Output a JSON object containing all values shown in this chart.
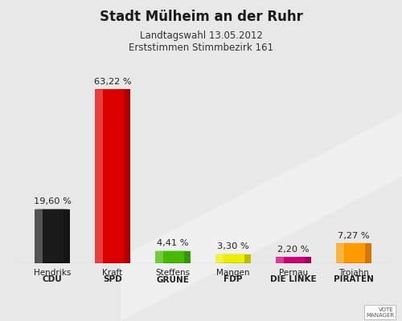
{
  "title": "Stadt Mülheim an der Ruhr",
  "subtitle1": "Landtagswahl 13.05.2012",
  "subtitle2": "Erststimmen Stimmbezirk 161",
  "categories": [
    "Hendriks\nCDU",
    "Kraft\nSPD",
    "Steffens\nGRÜNE",
    "Mangen\nFDP",
    "Pernau\nDIE LINKE",
    "Trojahn\nPIRATEN"
  ],
  "values": [
    19.6,
    63.22,
    4.41,
    3.3,
    2.2,
    7.27
  ],
  "labels": [
    "19,60 %",
    "63,22 %",
    "4,41 %",
    "3,30 %",
    "2,20 %",
    "7,27 %"
  ],
  "bar_colors": [
    "#1a1a1a",
    "#dd0000",
    "#44bb00",
    "#eeee00",
    "#cc0077",
    "#ff9900"
  ],
  "bar_colors_dark": [
    "#000000",
    "#aa0000",
    "#228800",
    "#aaaa00",
    "#880044",
    "#cc6600"
  ],
  "bar_colors_light": [
    "#555555",
    "#ff4444",
    "#88ee44",
    "#ffff55",
    "#ff44aa",
    "#ffcc44"
  ],
  "background_color": "#e8e8e8",
  "ylim": [
    0,
    70
  ],
  "bar_width": 0.58
}
